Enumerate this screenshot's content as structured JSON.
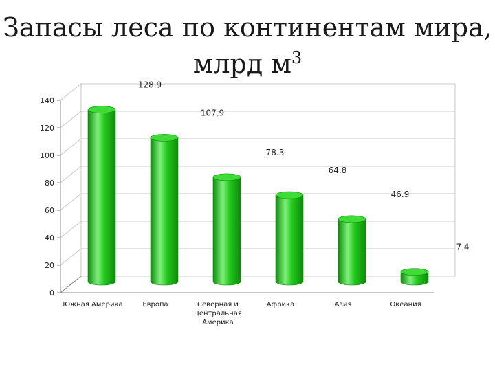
{
  "slide": {
    "title_line1": "Запасы леса по континентам мира,",
    "title_line2": "млрд м",
    "title_sup": "3"
  },
  "chart_data": {
    "type": "bar",
    "title": "",
    "xlabel": "",
    "ylabel": "",
    "categories": [
      [
        "Южная Америка"
      ],
      [
        "Европа"
      ],
      [
        "Северная и",
        "Центральная",
        "Америка"
      ],
      [
        "Африка"
      ],
      [
        "Азия"
      ],
      [
        "Океания"
      ]
    ],
    "values": [
      128.9,
      107.9,
      78.3,
      64.8,
      46.9,
      7.4
    ],
    "data_labels": [
      "128.9",
      "107.9",
      "78.3",
      "64.8",
      "46.9",
      "7.4"
    ],
    "ylim": [
      0,
      140
    ],
    "yticks": [
      0,
      20,
      40,
      60,
      80,
      100,
      120,
      140
    ],
    "grid": true,
    "legend": "none",
    "colors": {
      "bar_fill": "#22c81a",
      "bar_dark": "#0f8a0d",
      "bar_light": "#7ef07a",
      "bar_top": "#3fdc37",
      "grid": "#c8c8c8",
      "axis": "#888888",
      "text": "#222222"
    }
  }
}
